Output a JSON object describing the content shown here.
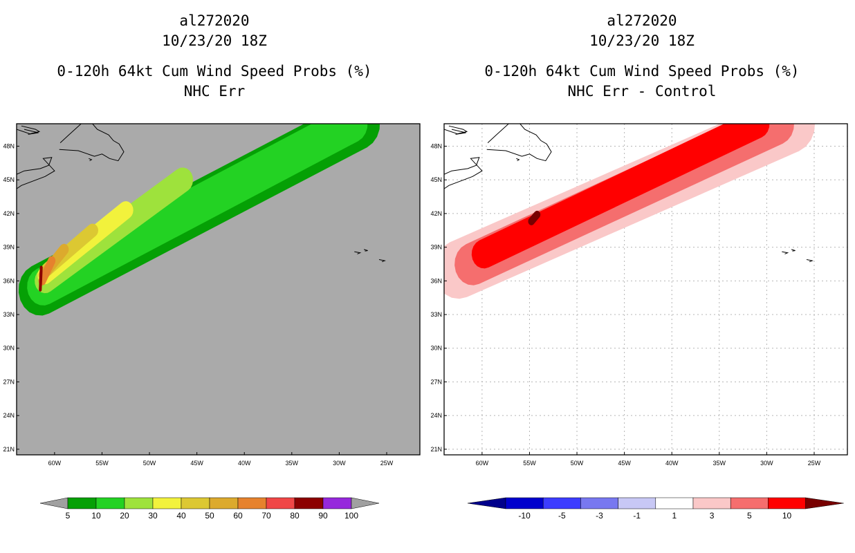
{
  "left": {
    "title": {
      "storm": "al272020",
      "date": "10/23/20 18Z",
      "product": "0-120h 64kt Cum Wind Speed Probs (%)",
      "subtitle": "NHC Err"
    },
    "colorbar": {
      "labels": [
        "5",
        "10",
        "20",
        "30",
        "40",
        "50",
        "60",
        "70",
        "80",
        "90",
        "100"
      ],
      "colors": [
        "#05a005",
        "#23d223",
        "#9ee23c",
        "#f2f23c",
        "#dcc832",
        "#dcaa2d",
        "#e6822d",
        "#f04646",
        "#8c0000",
        "#9628dc"
      ],
      "arrow_color": "#a0a0a0"
    }
  },
  "right": {
    "title": {
      "storm": "al272020",
      "date": "10/23/20 18Z",
      "product": "0-120h 64kt Cum Wind Speed Probs (%)",
      "subtitle": "NHC Err - Control"
    },
    "colorbar": {
      "labels": [
        "-10",
        "-5",
        "-3",
        "-1",
        "1",
        "3",
        "5",
        "10"
      ],
      "colors": [
        "#0000cd",
        "#3c3cff",
        "#7878f0",
        "#c8c8f5",
        "#ffffff",
        "#fac8c8",
        "#f56e6e",
        "#ff0000"
      ],
      "arrow_low": "#00008b",
      "arrow_high": "#780000"
    }
  },
  "map": {
    "lat_labels": [
      "48N",
      "45N",
      "42N",
      "39N",
      "36N",
      "33N",
      "30N",
      "27N",
      "24N",
      "21N"
    ],
    "lat_values": [
      48,
      45,
      42,
      39,
      36,
      33,
      30,
      27,
      24,
      21
    ],
    "lon_labels": [
      "60W",
      "55W",
      "50W",
      "45W",
      "40W",
      "35W",
      "30W",
      "25W"
    ],
    "lon_values": [
      -60,
      -55,
      -50,
      -45,
      -40,
      -35,
      -30,
      -25
    ],
    "lon_range": [
      -64,
      -21.5
    ],
    "lat_range": [
      20.5,
      50
    ],
    "left_background": "#aaaaaa",
    "right_background": "#ffffff"
  },
  "chart_data": [
    {
      "type": "heatmap",
      "title": "0-120h 64kt Cum Wind Speed Probs (%) NHC Err",
      "units": "%",
      "storm_track": [
        [
          -61.5,
          35.5
        ],
        [
          -60,
          38.5
        ],
        [
          -55,
          41.5
        ],
        [
          -50,
          43.5
        ],
        [
          -45,
          45.5
        ],
        [
          -40,
          47
        ],
        [
          -35,
          48.5
        ],
        [
          -30,
          49.7
        ],
        [
          -28,
          50
        ]
      ],
      "bands": [
        {
          "level": 5,
          "color": "#05a005",
          "track_from": [
            -61.5,
            35.2
          ],
          "track_to": [
            -28,
            50
          ],
          "half_width_deg": 2.3
        },
        {
          "level": 10,
          "color": "#23d223",
          "track_from": [
            -61.2,
            35.5
          ],
          "track_to": [
            -28.7,
            50
          ],
          "half_width_deg": 1.7
        },
        {
          "level": 20,
          "color": "#9ee23c",
          "track_from": [
            -61,
            36
          ],
          "track_to": [
            -46.5,
            45
          ],
          "half_width_deg": 1.1
        },
        {
          "level": 30,
          "color": "#f2f23c",
          "track_from": [
            -61,
            36.5
          ],
          "track_to": [
            -52.5,
            42.3
          ],
          "half_width_deg": 0.8
        },
        {
          "level": 40,
          "color": "#dcc832",
          "track_from": [
            -60.8,
            37
          ],
          "track_to": [
            -56,
            40.5
          ],
          "half_width_deg": 0.6
        },
        {
          "level": 50,
          "color": "#dcaa2d",
          "track_from": [
            -61.2,
            36.5
          ],
          "track_to": [
            -59,
            38.8
          ],
          "half_width_deg": 0.5
        },
        {
          "level": 60,
          "color": "#e6822d",
          "track_from": [
            -61.3,
            36
          ],
          "track_to": [
            -60.3,
            37.8
          ],
          "half_width_deg": 0.4
        },
        {
          "level": 80,
          "color": "#8c0000",
          "track_from": [
            -61.5,
            35.2
          ],
          "track_to": [
            -61.4,
            37.2
          ],
          "half_width_deg": 0.15
        }
      ]
    },
    {
      "type": "heatmap",
      "title": "0-120h 64kt Cum Wind Speed Probs (%) NHC Err - Control",
      "units": "%",
      "storm_track": [
        [
          -61.5,
          36.5
        ],
        [
          -55,
          41.5
        ],
        [
          -50,
          43.5
        ],
        [
          -45,
          45.5
        ],
        [
          -40,
          47
        ],
        [
          -35,
          48.5
        ],
        [
          -30,
          50
        ]
      ],
      "bands": [
        {
          "level": 1,
          "color": "#fac8c8",
          "track_from": [
            -62.5,
            37
          ],
          "track_to": [
            -27.5,
            50
          ],
          "half_width_deg": 2.6
        },
        {
          "level": 3,
          "color": "#f56e6e",
          "track_from": [
            -61,
            37.5
          ],
          "track_to": [
            -29,
            50
          ],
          "half_width_deg": 1.9
        },
        {
          "level": 5,
          "color": "#ff0000",
          "track_from": [
            -59.8,
            38.4
          ],
          "track_to": [
            -31,
            50
          ],
          "half_width_deg": 1.3
        },
        {
          "level": 10,
          "color": "#780000",
          "track_from": [
            -54.8,
            41.3
          ],
          "track_to": [
            -54.2,
            41.9
          ],
          "half_width_deg": 0.35
        }
      ]
    }
  ]
}
